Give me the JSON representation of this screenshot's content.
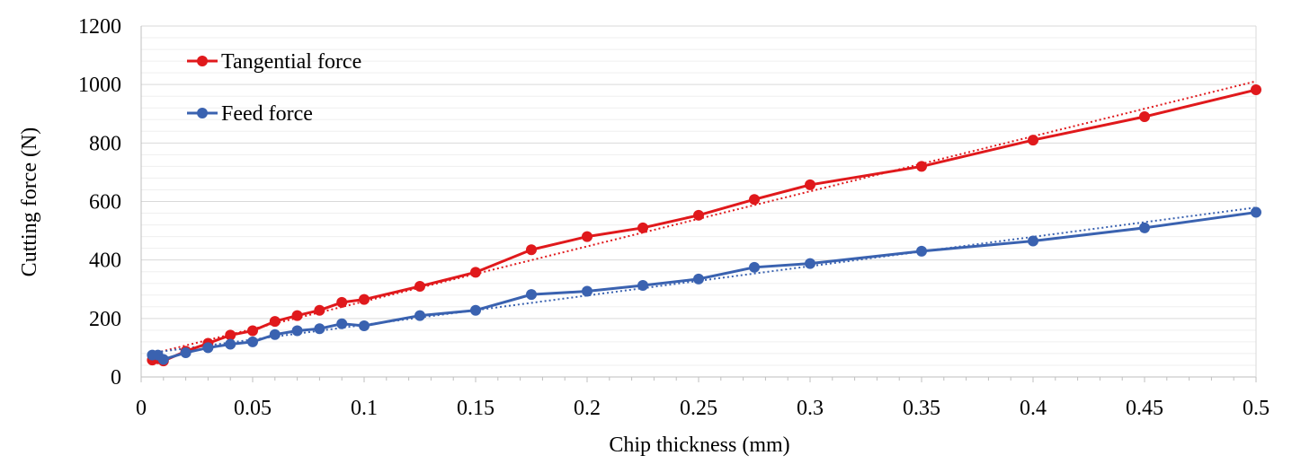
{
  "chart_data": {
    "type": "line",
    "title": "",
    "xlabel": "Chip thickness (mm)",
    "ylabel": "Cutting force (N)",
    "xlim": [
      0,
      0.5
    ],
    "ylim": [
      0,
      1200
    ],
    "x_ticks": [
      "0",
      "0.05",
      "0.1",
      "0.15",
      "0.2",
      "0.25",
      "0.3",
      "0.35",
      "0.4",
      "0.45",
      "0.5"
    ],
    "y_ticks": [
      "0",
      "200",
      "400",
      "600",
      "800",
      "1000",
      "1200"
    ],
    "grid": true,
    "legend_position": "top-left",
    "series": [
      {
        "name": "Tangential force",
        "color": "#e0191c",
        "marker": "circle",
        "trendline": "linear (dotted)",
        "x": [
          0.005,
          0.0075,
          0.01,
          0.02,
          0.03,
          0.04,
          0.05,
          0.06,
          0.07,
          0.08,
          0.09,
          0.1,
          0.125,
          0.15,
          0.175,
          0.2,
          0.225,
          0.25,
          0.275,
          0.3,
          0.35,
          0.4,
          0.45,
          0.5
        ],
        "values": [
          58,
          62,
          55,
          88,
          115,
          143,
          158,
          190,
          210,
          228,
          255,
          265,
          310,
          358,
          435,
          480,
          510,
          553,
          607,
          657,
          720,
          810,
          890,
          982
        ]
      },
      {
        "name": "Feed force",
        "color": "#3a62b0",
        "marker": "circle",
        "trendline": "linear (dotted)",
        "x": [
          0.005,
          0.0075,
          0.01,
          0.02,
          0.03,
          0.04,
          0.05,
          0.06,
          0.07,
          0.08,
          0.09,
          0.1,
          0.125,
          0.15,
          0.175,
          0.2,
          0.225,
          0.25,
          0.275,
          0.3,
          0.35,
          0.4,
          0.45,
          0.5
        ],
        "values": [
          75,
          75,
          60,
          83,
          100,
          112,
          120,
          145,
          158,
          165,
          182,
          175,
          210,
          228,
          282,
          293,
          313,
          335,
          375,
          388,
          430,
          465,
          510,
          563
        ]
      }
    ]
  }
}
